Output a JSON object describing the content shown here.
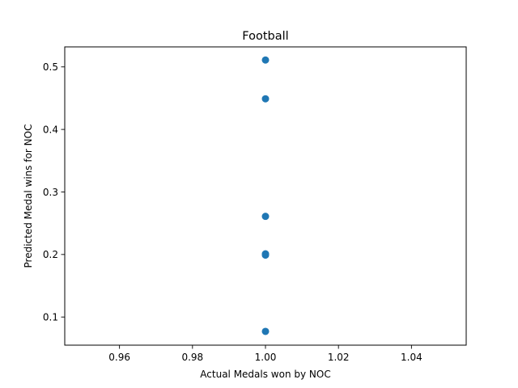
{
  "chart_data": {
    "type": "scatter",
    "title": "Football",
    "xlabel": "Actual Medals won by NOC",
    "ylabel": "Predicted Medal wins for NOC",
    "xlim": [
      0.945,
      1.055
    ],
    "ylim": [
      0.055,
      0.532
    ],
    "xticks": [
      0.96,
      0.98,
      1.0,
      1.02,
      1.04
    ],
    "xtick_labels": [
      "0.96",
      "0.98",
      "1.00",
      "1.02",
      "1.04"
    ],
    "yticks": [
      0.1,
      0.2,
      0.3,
      0.4,
      0.5
    ],
    "ytick_labels": [
      "0.1",
      "0.2",
      "0.3",
      "0.4",
      "0.5"
    ],
    "grid": false,
    "points": [
      {
        "x": 1.0,
        "y": 0.511
      },
      {
        "x": 1.0,
        "y": 0.449
      },
      {
        "x": 1.0,
        "y": 0.261
      },
      {
        "x": 1.0,
        "y": 0.201
      },
      {
        "x": 1.0,
        "y": 0.199
      },
      {
        "x": 1.0,
        "y": 0.077
      }
    ],
    "marker_color": "#1f77b4"
  }
}
